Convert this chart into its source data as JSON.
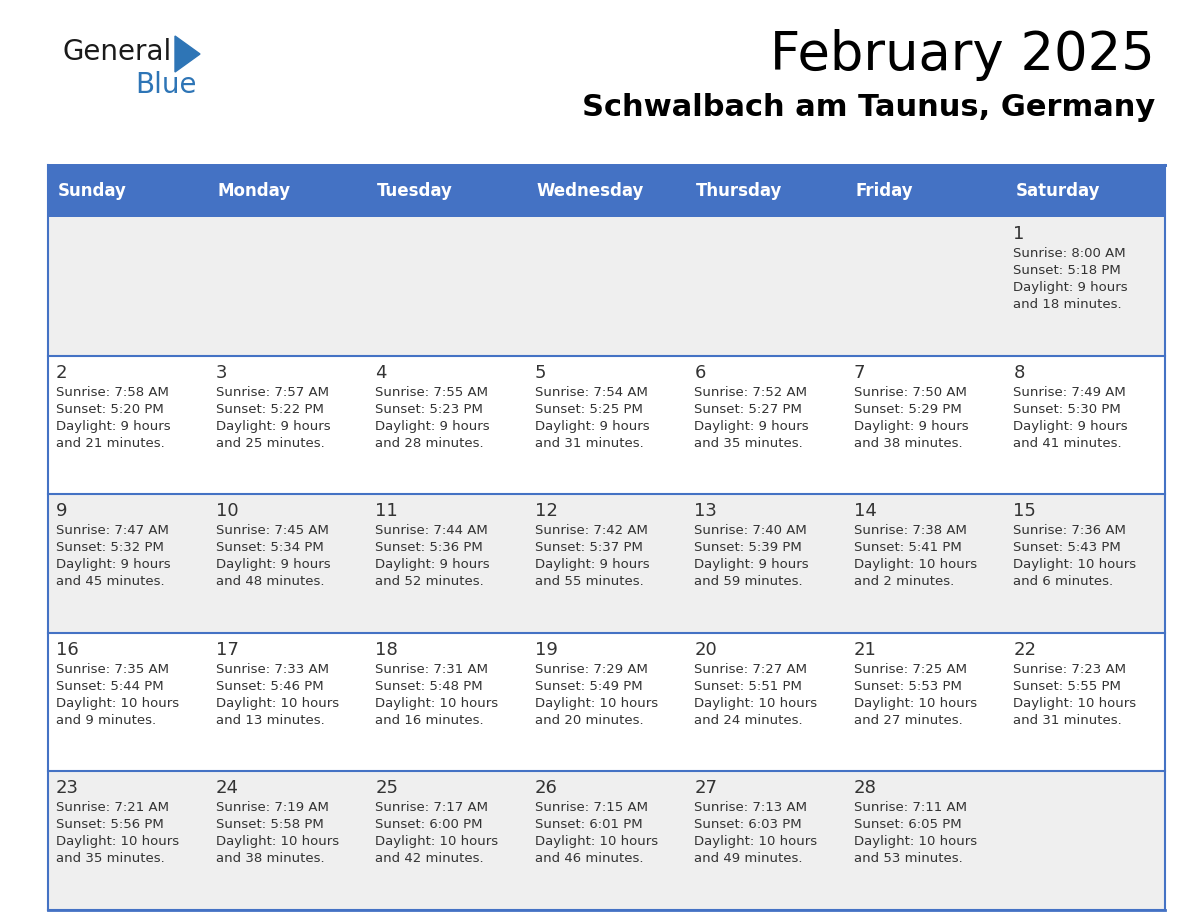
{
  "title": "February 2025",
  "subtitle": "Schwalbach am Taunus, Germany",
  "days_of_week": [
    "Sunday",
    "Monday",
    "Tuesday",
    "Wednesday",
    "Thursday",
    "Friday",
    "Saturday"
  ],
  "header_bg": "#4472C4",
  "header_text_color": "#FFFFFF",
  "cell_bg_row0": "#EFEFEF",
  "cell_bg_row1": "#FFFFFF",
  "cell_bg_row2": "#EFEFEF",
  "cell_bg_row3": "#FFFFFF",
  "cell_bg_row4": "#EFEFEF",
  "border_color": "#4472C4",
  "text_color": "#333333",
  "logo_general_color": "#1a1a1a",
  "logo_blue_color": "#2E75B6",
  "calendar": [
    [
      null,
      null,
      null,
      null,
      null,
      null,
      {
        "day": 1,
        "sunrise": "8:00 AM",
        "sunset": "5:18 PM",
        "daylight": "9 hours and 18 minutes."
      }
    ],
    [
      {
        "day": 2,
        "sunrise": "7:58 AM",
        "sunset": "5:20 PM",
        "daylight": "9 hours and 21 minutes."
      },
      {
        "day": 3,
        "sunrise": "7:57 AM",
        "sunset": "5:22 PM",
        "daylight": "9 hours and 25 minutes."
      },
      {
        "day": 4,
        "sunrise": "7:55 AM",
        "sunset": "5:23 PM",
        "daylight": "9 hours and 28 minutes."
      },
      {
        "day": 5,
        "sunrise": "7:54 AM",
        "sunset": "5:25 PM",
        "daylight": "9 hours and 31 minutes."
      },
      {
        "day": 6,
        "sunrise": "7:52 AM",
        "sunset": "5:27 PM",
        "daylight": "9 hours and 35 minutes."
      },
      {
        "day": 7,
        "sunrise": "7:50 AM",
        "sunset": "5:29 PM",
        "daylight": "9 hours and 38 minutes."
      },
      {
        "day": 8,
        "sunrise": "7:49 AM",
        "sunset": "5:30 PM",
        "daylight": "9 hours and 41 minutes."
      }
    ],
    [
      {
        "day": 9,
        "sunrise": "7:47 AM",
        "sunset": "5:32 PM",
        "daylight": "9 hours and 45 minutes."
      },
      {
        "day": 10,
        "sunrise": "7:45 AM",
        "sunset": "5:34 PM",
        "daylight": "9 hours and 48 minutes."
      },
      {
        "day": 11,
        "sunrise": "7:44 AM",
        "sunset": "5:36 PM",
        "daylight": "9 hours and 52 minutes."
      },
      {
        "day": 12,
        "sunrise": "7:42 AM",
        "sunset": "5:37 PM",
        "daylight": "9 hours and 55 minutes."
      },
      {
        "day": 13,
        "sunrise": "7:40 AM",
        "sunset": "5:39 PM",
        "daylight": "9 hours and 59 minutes."
      },
      {
        "day": 14,
        "sunrise": "7:38 AM",
        "sunset": "5:41 PM",
        "daylight": "10 hours and 2 minutes."
      },
      {
        "day": 15,
        "sunrise": "7:36 AM",
        "sunset": "5:43 PM",
        "daylight": "10 hours and 6 minutes."
      }
    ],
    [
      {
        "day": 16,
        "sunrise": "7:35 AM",
        "sunset": "5:44 PM",
        "daylight": "10 hours and 9 minutes."
      },
      {
        "day": 17,
        "sunrise": "7:33 AM",
        "sunset": "5:46 PM",
        "daylight": "10 hours and 13 minutes."
      },
      {
        "day": 18,
        "sunrise": "7:31 AM",
        "sunset": "5:48 PM",
        "daylight": "10 hours and 16 minutes."
      },
      {
        "day": 19,
        "sunrise": "7:29 AM",
        "sunset": "5:49 PM",
        "daylight": "10 hours and 20 minutes."
      },
      {
        "day": 20,
        "sunrise": "7:27 AM",
        "sunset": "5:51 PM",
        "daylight": "10 hours and 24 minutes."
      },
      {
        "day": 21,
        "sunrise": "7:25 AM",
        "sunset": "5:53 PM",
        "daylight": "10 hours and 27 minutes."
      },
      {
        "day": 22,
        "sunrise": "7:23 AM",
        "sunset": "5:55 PM",
        "daylight": "10 hours and 31 minutes."
      }
    ],
    [
      {
        "day": 23,
        "sunrise": "7:21 AM",
        "sunset": "5:56 PM",
        "daylight": "10 hours and 35 minutes."
      },
      {
        "day": 24,
        "sunrise": "7:19 AM",
        "sunset": "5:58 PM",
        "daylight": "10 hours and 38 minutes."
      },
      {
        "day": 25,
        "sunrise": "7:17 AM",
        "sunset": "6:00 PM",
        "daylight": "10 hours and 42 minutes."
      },
      {
        "day": 26,
        "sunrise": "7:15 AM",
        "sunset": "6:01 PM",
        "daylight": "10 hours and 46 minutes."
      },
      {
        "day": 27,
        "sunrise": "7:13 AM",
        "sunset": "6:03 PM",
        "daylight": "10 hours and 49 minutes."
      },
      {
        "day": 28,
        "sunrise": "7:11 AM",
        "sunset": "6:05 PM",
        "daylight": "10 hours and 53 minutes."
      },
      null
    ]
  ],
  "row_bg_colors": [
    "#EFEFEF",
    "#FFFFFF",
    "#EFEFEF",
    "#FFFFFF",
    "#EFEFEF"
  ]
}
